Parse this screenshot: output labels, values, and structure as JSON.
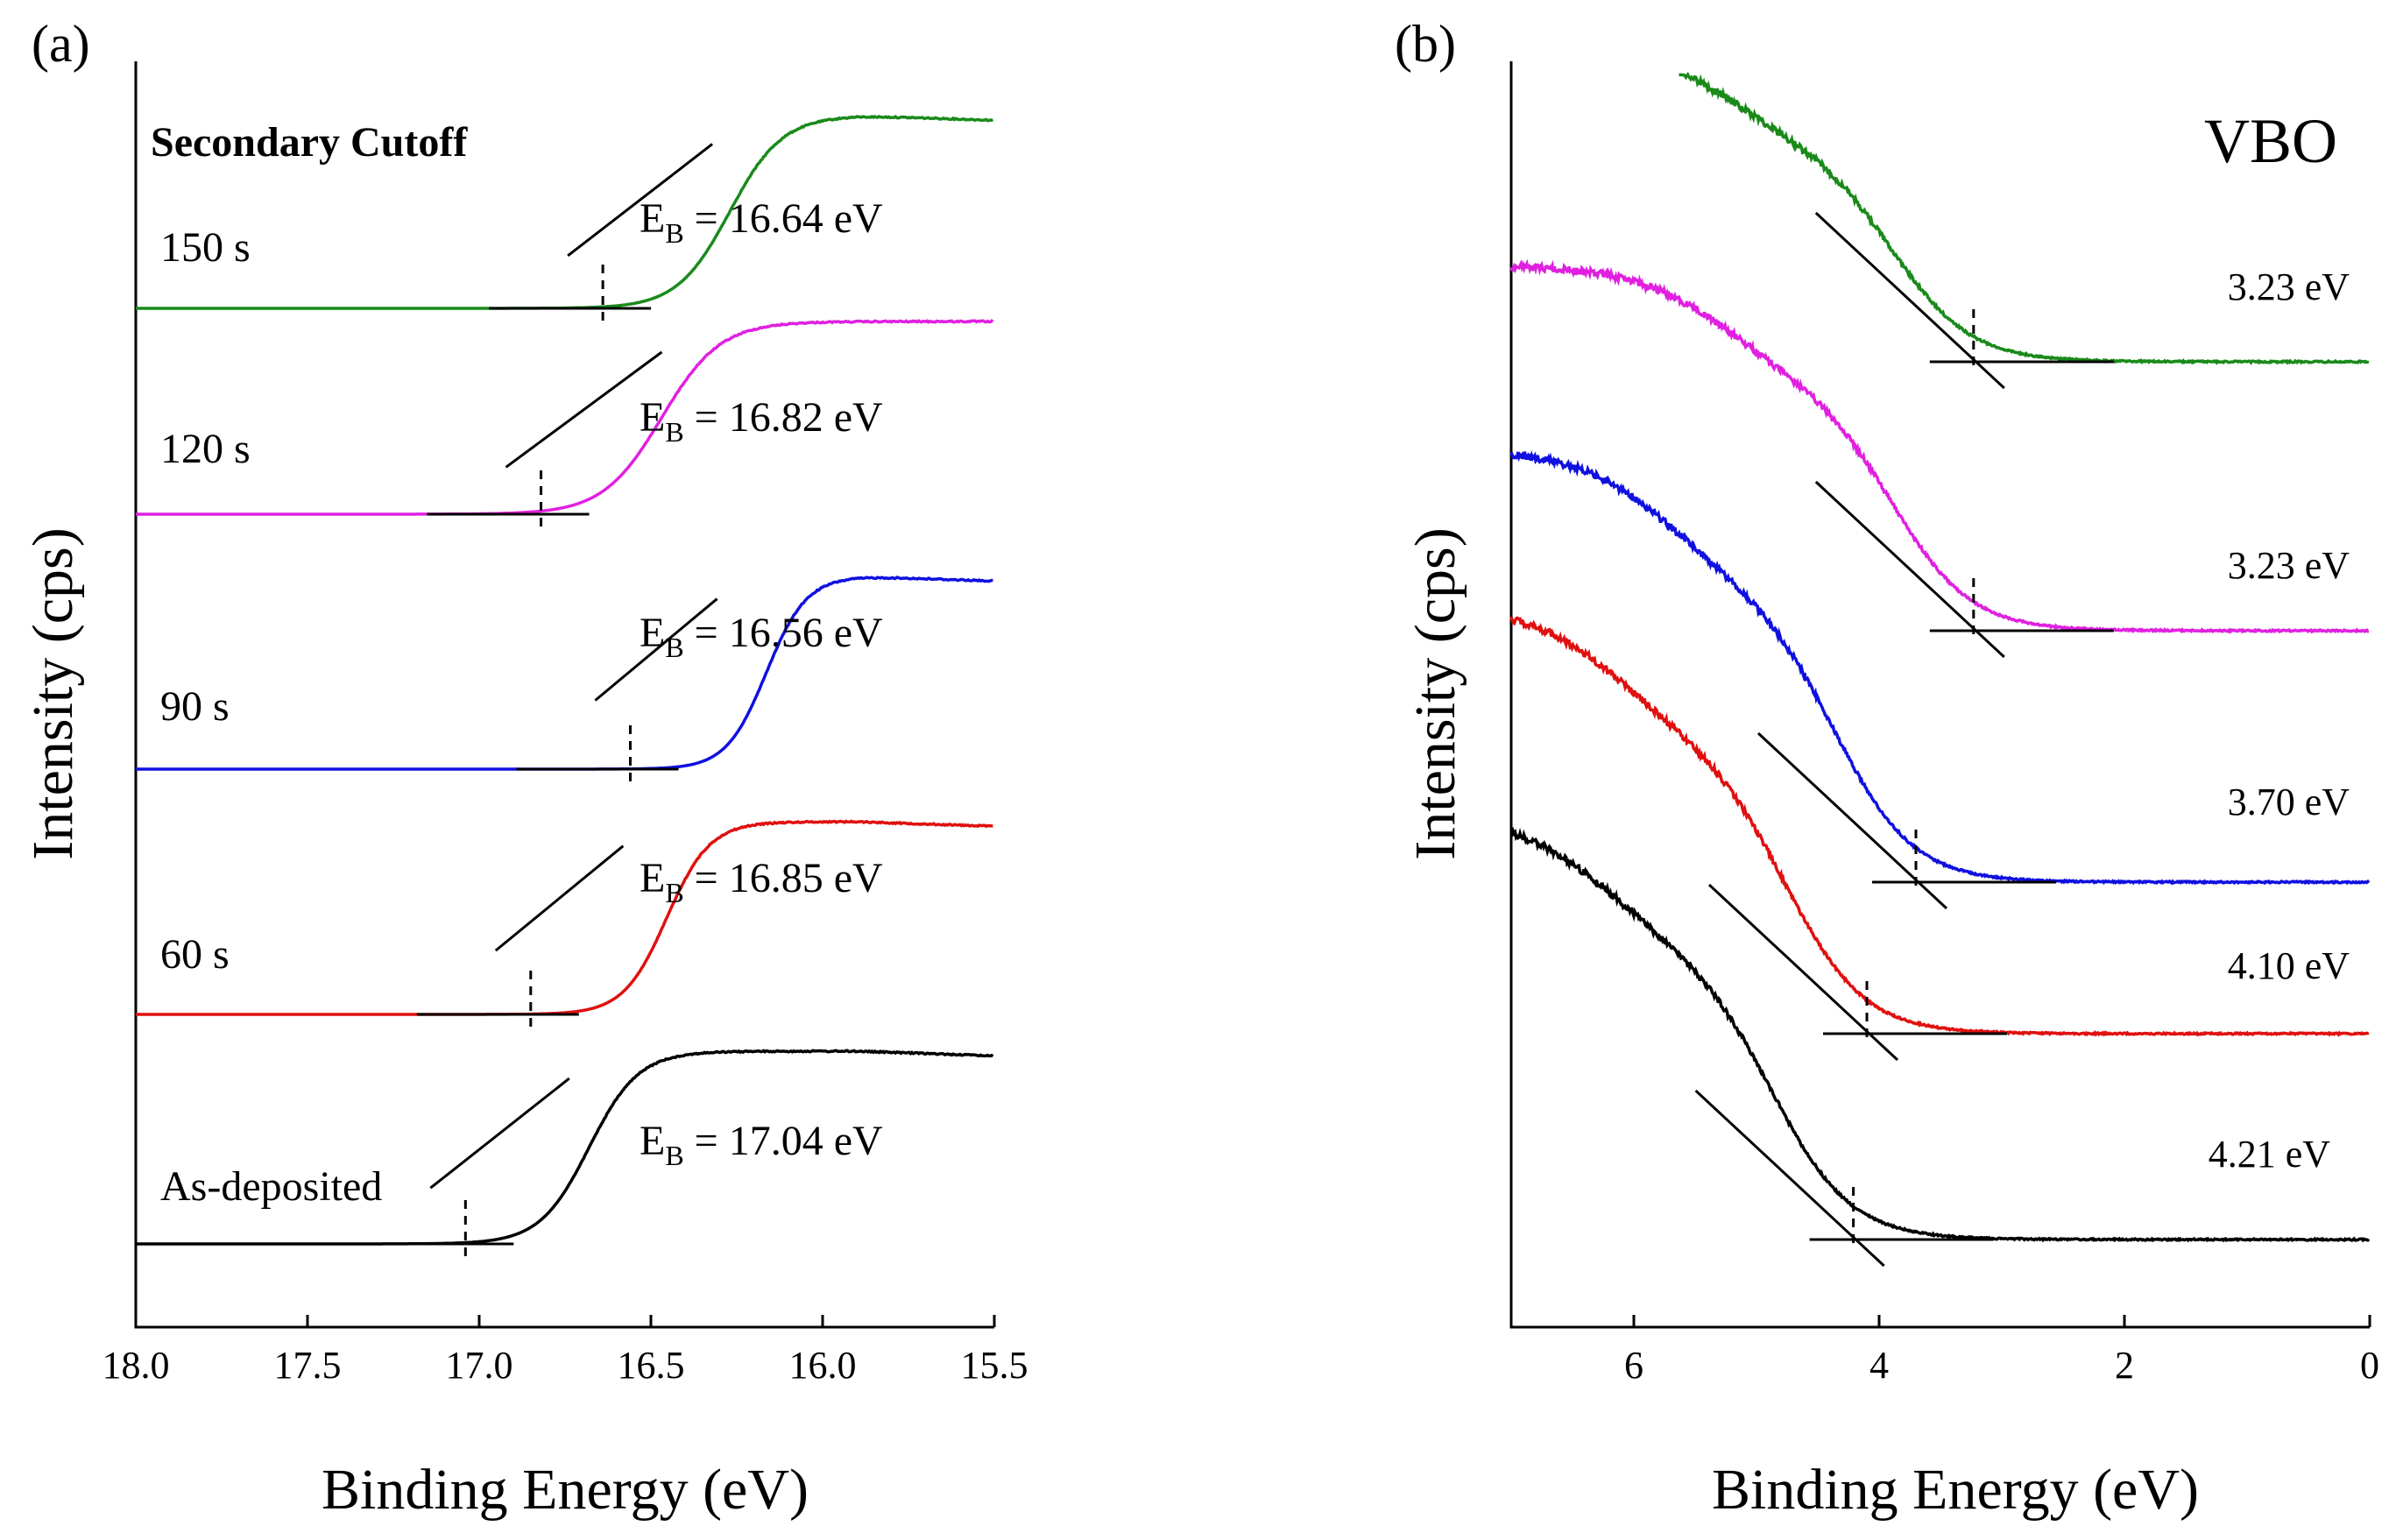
{
  "chart_data": [
    {
      "type": "line",
      "panel_label": "(a)",
      "title": "Secondary Cutoff",
      "xlabel": "Binding Energy (eV)",
      "ylabel": "Intensity (cps)",
      "xlim": [
        18.0,
        15.5
      ],
      "x_reversed": true,
      "xticks": [
        "18.0",
        "17.5",
        "17.0",
        "16.5",
        "16.0",
        "15.5"
      ],
      "xtick_values": [
        18.0,
        17.5,
        17.0,
        16.5,
        16.0,
        15.5
      ],
      "series": [
        {
          "name": "150 s",
          "color": "#1a8a1a",
          "cutoff": 16.64,
          "label": "E",
          "sub": "B",
          "value_text": " = 16.64 eV",
          "offset": 4,
          "step": 0.82,
          "width": 0.17
        },
        {
          "name": "120 s",
          "color": "#e020e0",
          "cutoff": 16.82,
          "label": "E",
          "sub": "B",
          "value_text": " = 16.82 eV",
          "offset": 3,
          "step": 0.78,
          "width": 0.19
        },
        {
          "name": "90 s",
          "color": "#1010e0",
          "cutoff": 16.56,
          "label": "E",
          "sub": "B",
          "value_text": " = 16.56 eV",
          "offset": 2,
          "step": 0.88,
          "width": 0.13
        },
        {
          "name": "60 s",
          "color": "#e01010",
          "cutoff": 16.85,
          "label": "E",
          "sub": "B",
          "value_text": " = 16.85 eV",
          "offset": 1,
          "step": 0.88,
          "width": 0.14
        },
        {
          "name": "As-deposited",
          "color": "#000000",
          "cutoff": 17.04,
          "label": "E",
          "sub": "B",
          "value_text": " = 17.04 eV",
          "offset": 0,
          "step": 0.8,
          "width": 0.16
        }
      ]
    },
    {
      "type": "line",
      "panel_label": "(b)",
      "title": "VBO",
      "xlabel": "Binding Energy (eV)",
      "ylabel": "Intensity (cps)",
      "xlim": [
        7.0,
        0.0
      ],
      "x_reversed": true,
      "xticks": [
        "6",
        "4",
        "2",
        "0"
      ],
      "xtick_values": [
        6,
        4,
        2,
        0
      ],
      "series": [
        {
          "name": "150 s",
          "color": "#1a8a1a",
          "vbm": 3.23,
          "value_text": "3.23 eV",
          "offset": 4
        },
        {
          "name": "120 s",
          "color": "#e020e0",
          "vbm": 3.23,
          "value_text": "3.23 eV",
          "offset": 3
        },
        {
          "name": "90 s",
          "color": "#1010e0",
          "vbm": 3.7,
          "value_text": "3.70 eV",
          "offset": 2
        },
        {
          "name": "60 s",
          "color": "#e01010",
          "vbm": 4.1,
          "value_text": "4.10 eV",
          "offset": 1
        },
        {
          "name": "As-deposited",
          "color": "#000000",
          "vbm": 4.21,
          "value_text": "4.21 eV",
          "offset": 0
        }
      ]
    }
  ]
}
